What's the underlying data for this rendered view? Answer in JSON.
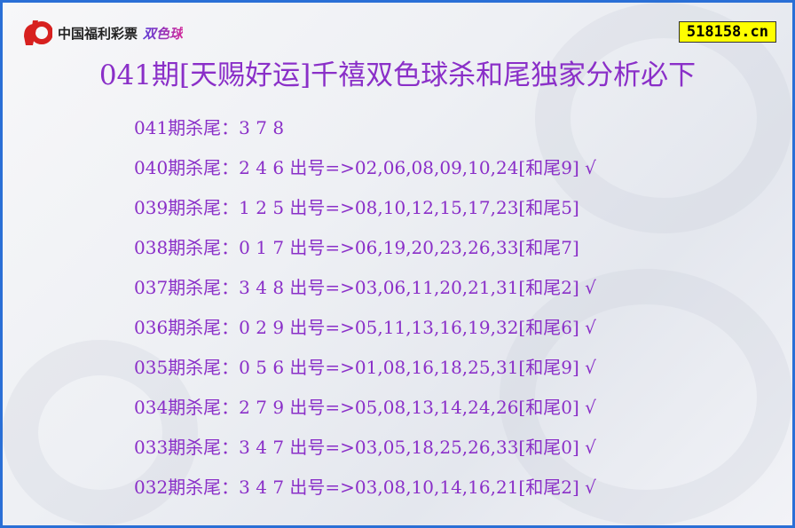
{
  "logo": {
    "text": "中国福利彩票",
    "game": "双色球"
  },
  "badge": "518158.cn",
  "title": "041期[天赐好运]千禧双色球杀和尾独家分析必下",
  "rows": [
    "041期杀尾：3 7 8",
    "040期杀尾：2 4 6 出号=>02,06,08,09,10,24[和尾9] √",
    "039期杀尾：1 2 5 出号=>08,10,12,15,17,23[和尾5]",
    "038期杀尾：0 1 7 出号=>06,19,20,23,26,33[和尾7]",
    "037期杀尾：3 4 8 出号=>03,06,11,20,21,31[和尾2] √",
    "036期杀尾：0 2 9 出号=>05,11,13,16,19,32[和尾6] √",
    "035期杀尾：0 5 6 出号=>01,08,16,18,25,31[和尾9] √",
    "034期杀尾：2 7 9 出号=>05,08,13,14,24,26[和尾0] √",
    "033期杀尾：3 4 7 出号=>03,05,18,25,26,33[和尾0] √",
    "032期杀尾：3 4 7 出号=>03,08,10,14,16,21[和尾2] √"
  ],
  "colors": {
    "text": "#8a2fc8",
    "border": "#2a6fd6",
    "badge_bg": "#ffff00",
    "logo_red": "#d7201f"
  }
}
